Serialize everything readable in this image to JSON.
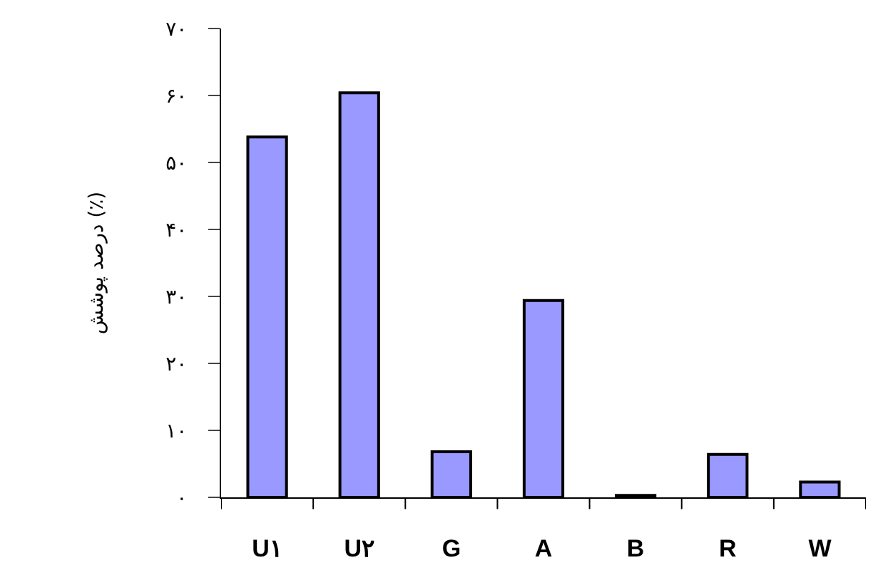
{
  "chart_data": {
    "type": "bar",
    "ylabel": "درصد پوشش (٪)",
    "categories": [
      "U۱",
      "U۲",
      "G",
      "A",
      "B",
      "R",
      "W"
    ],
    "values": [
      53.8,
      60.4,
      6.8,
      29.4,
      0.3,
      6.4,
      2.3
    ],
    "color": "#9999ff",
    "legend": false,
    "ylim": [
      0,
      70
    ],
    "yticks": [
      {
        "value": 0,
        "label": "۰"
      },
      {
        "value": 10,
        "label": "۱۰"
      },
      {
        "value": 20,
        "label": "۲۰"
      },
      {
        "value": 30,
        "label": "۳۰"
      },
      {
        "value": 40,
        "label": "۴۰"
      },
      {
        "value": 50,
        "label": "۵۰"
      },
      {
        "value": 60,
        "label": "۶۰"
      },
      {
        "value": 70,
        "label": "۷۰"
      }
    ],
    "grid": false
  }
}
